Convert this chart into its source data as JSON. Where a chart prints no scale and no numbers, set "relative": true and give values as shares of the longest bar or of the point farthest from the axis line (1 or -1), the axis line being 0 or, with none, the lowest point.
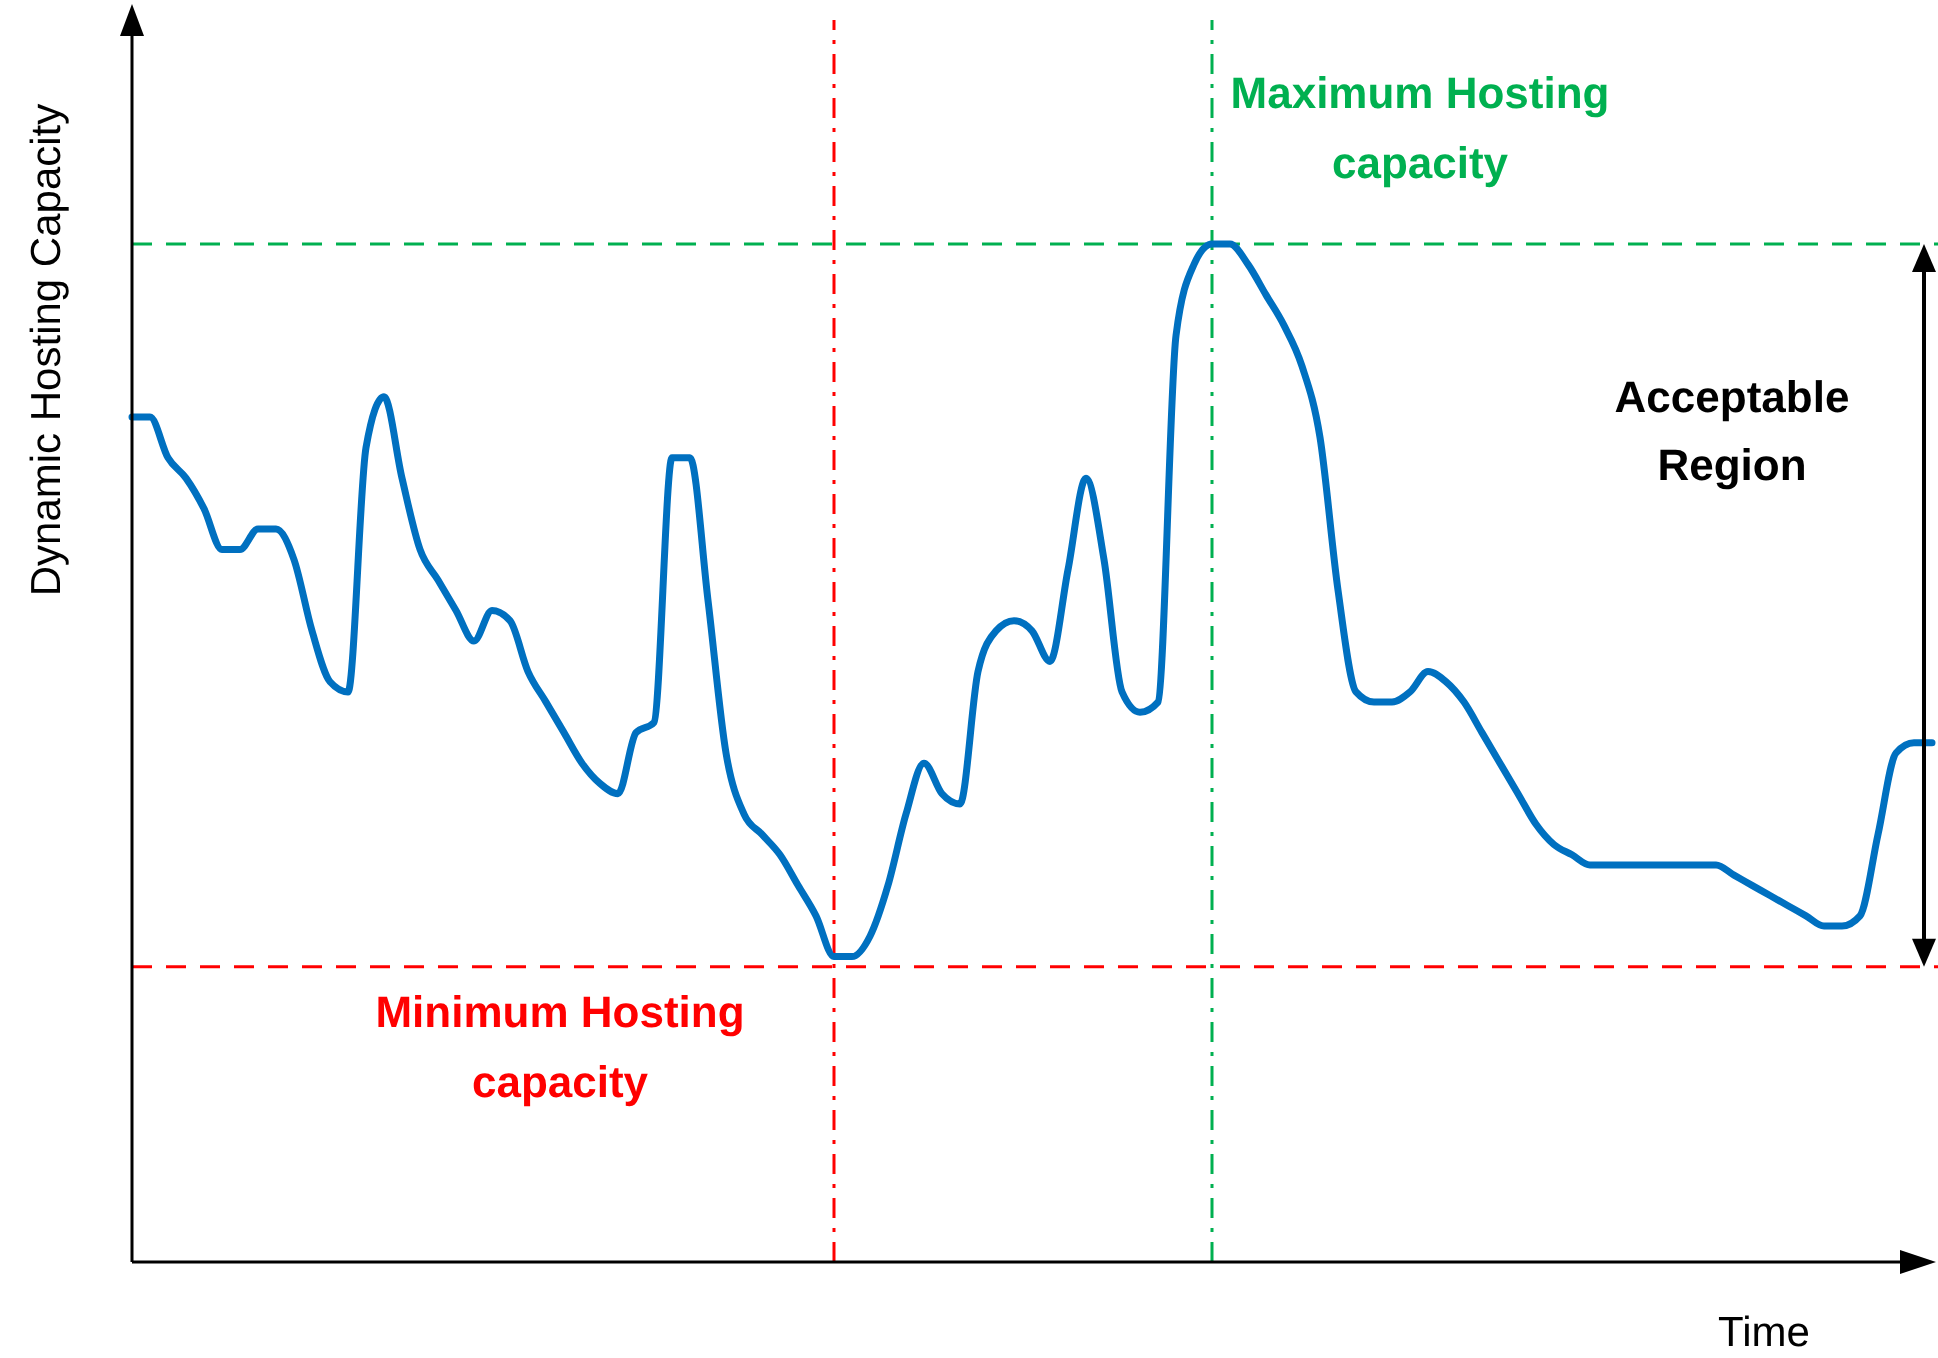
{
  "chart_data": {
    "type": "line",
    "relative": true,
    "xlabel": "Time",
    "ylabel": "Dynamic Hosting Capacity",
    "categories": [
      null,
      null,
      null,
      null,
      null,
      null,
      null,
      null,
      null,
      null,
      null,
      null,
      null,
      null,
      null,
      null,
      null,
      null,
      null,
      null,
      null,
      null,
      null,
      null,
      null,
      null,
      null,
      null,
      null,
      null,
      null,
      null,
      null,
      null,
      null,
      null,
      null,
      null,
      null,
      null,
      null,
      null,
      null,
      null,
      null,
      null,
      null,
      null,
      null,
      null,
      null,
      null,
      null,
      null,
      null,
      null,
      null,
      null,
      null,
      null,
      null,
      null,
      null,
      null,
      null,
      null,
      null,
      null,
      null,
      null,
      null,
      null,
      null,
      null,
      null,
      null,
      null,
      null,
      null,
      null,
      null,
      null,
      null,
      null,
      null,
      null,
      null,
      null,
      null,
      null,
      null,
      null,
      null,
      null,
      null,
      null,
      null,
      null,
      null,
      null,
      null
    ],
    "series": [
      {
        "color": "#0070c0",
        "values": [
          0.83,
          0.83,
          0.79,
          0.77,
          0.74,
          0.7,
          0.7,
          0.72,
          0.72,
          0.69,
          0.62,
          0.57,
          0.56,
          0.8,
          0.85,
          0.77,
          0.7,
          0.67,
          0.64,
          0.61,
          0.64,
          0.63,
          0.58,
          0.55,
          0.52,
          0.49,
          0.47,
          0.46,
          0.52,
          0.53,
          0.79,
          0.79,
          0.65,
          0.5,
          0.44,
          0.42,
          0.4,
          0.37,
          0.34,
          0.3,
          0.3,
          0.32,
          0.37,
          0.44,
          0.49,
          0.46,
          0.45,
          0.58,
          0.62,
          0.63,
          0.62,
          0.59,
          0.68,
          0.77,
          0.69,
          0.56,
          0.54,
          0.55,
          0.91,
          0.98,
          1.0,
          1.0,
          0.98,
          0.95,
          0.92,
          0.88,
          0.81,
          0.66,
          0.56,
          0.55,
          0.55,
          0.56,
          0.58,
          0.57,
          0.55,
          0.52,
          0.49,
          0.46,
          0.43,
          0.41,
          0.4,
          0.39,
          0.39,
          0.39,
          0.39,
          0.39,
          0.39,
          0.39,
          0.39,
          0.38,
          0.37,
          0.36,
          0.35,
          0.34,
          0.33,
          0.33,
          0.34,
          0.42,
          0.5,
          0.51,
          0.51
        ]
      }
    ],
    "ref_lines": [
      {
        "axis": "y",
        "value": 1.0,
        "label": "Maximum Hosting capacity",
        "color": "#00b050",
        "line_style": "dashed"
      },
      {
        "axis": "y",
        "value": 0.29,
        "label": "Minimum Hosting capacity",
        "color": "#ff0000",
        "line_style": "dashed"
      }
    ],
    "annotations": [
      "Acceptable Region"
    ],
    "line_style": "solid",
    "marker": "none"
  }
}
